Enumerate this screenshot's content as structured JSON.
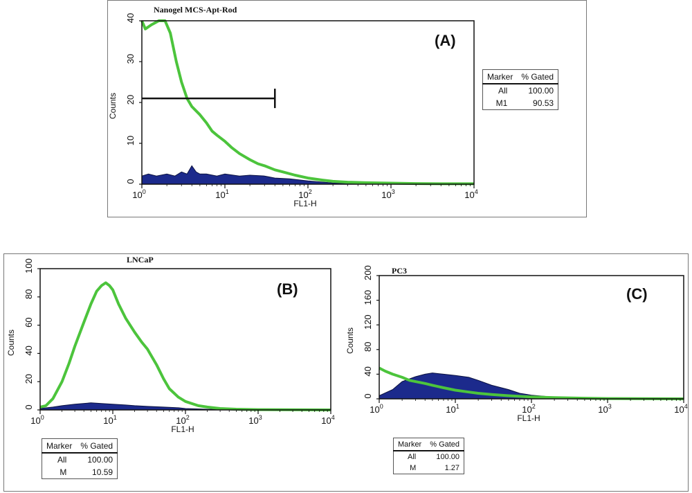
{
  "chart_data": [
    {
      "id": "A",
      "type": "area",
      "panel_label": "(A)",
      "title": "Nanogel MCS-Apt-Rod",
      "xlabel": "FL1-H",
      "ylabel": "Counts",
      "xscale": "log",
      "xlim": [
        1,
        10000
      ],
      "ylim": [
        0,
        40
      ],
      "yticks": [
        0,
        10,
        20,
        30,
        40
      ],
      "xticks": [
        1,
        10,
        100,
        1000,
        10000
      ],
      "colors": {
        "sample": "#4cc43c",
        "control": "#1c2a8c"
      },
      "series": [
        {
          "role": "sample",
          "x": [
            1,
            1.1,
            1.3,
            1.6,
            1.9,
            2.2,
            2.6,
            3,
            3.5,
            4,
            5,
            6,
            7,
            8,
            10,
            12,
            15,
            20,
            25,
            30,
            40,
            50,
            70,
            100,
            150,
            200,
            300,
            500,
            1000,
            2000,
            5000,
            10000
          ],
          "values": [
            40,
            38,
            39,
            40,
            40,
            37,
            30,
            25,
            21,
            19,
            17,
            15,
            13,
            12,
            10.5,
            9,
            7.5,
            6,
            5,
            4.5,
            3.5,
            3,
            2.2,
            1.5,
            1,
            0.7,
            0.5,
            0.35,
            0.25,
            0.15,
            0.1,
            0.1
          ]
        },
        {
          "role": "control",
          "x": [
            1,
            1.2,
            1.5,
            2,
            2.5,
            3,
            3.5,
            4,
            4.5,
            5,
            6,
            8,
            10,
            15,
            20,
            30,
            40,
            60,
            100,
            200,
            500,
            1000,
            10000
          ],
          "values": [
            2,
            2.5,
            2,
            2.5,
            2,
            3,
            2.5,
            4.5,
            3,
            2.5,
            2.5,
            2,
            2.5,
            2,
            2.2,
            2,
            1.5,
            1.3,
            0.8,
            0.3,
            0.1,
            0.05,
            0
          ]
        }
      ],
      "gate": {
        "x_start": 1,
        "x_end": 40,
        "y": 21
      },
      "marker_table": {
        "headers": [
          "Marker",
          "% Gated"
        ],
        "rows": [
          [
            "All",
            "100.00"
          ],
          [
            "M1",
            "90.53"
          ]
        ]
      }
    },
    {
      "id": "B",
      "type": "area",
      "panel_label": "(B)",
      "title": "LNCaP",
      "xlabel": "FL1-H",
      "ylabel": "Counts",
      "xscale": "log",
      "xlim": [
        1,
        10000
      ],
      "ylim": [
        0,
        100
      ],
      "yticks": [
        0,
        20,
        40,
        60,
        80,
        100
      ],
      "xticks": [
        1,
        10,
        100,
        1000,
        10000
      ],
      "colors": {
        "sample": "#4cc43c",
        "control": "#1c2a8c"
      },
      "series": [
        {
          "role": "sample",
          "x": [
            1,
            1.2,
            1.5,
            2,
            2.5,
            3,
            4,
            5,
            6,
            7,
            8,
            9,
            10,
            12,
            15,
            20,
            25,
            30,
            40,
            50,
            60,
            80,
            100,
            150,
            200,
            300,
            500,
            1000,
            10000
          ],
          "values": [
            2,
            3,
            8,
            20,
            33,
            45,
            62,
            75,
            84,
            88,
            90,
            88,
            85,
            75,
            65,
            55,
            48,
            43,
            32,
            22,
            15,
            9,
            6,
            3,
            2,
            1,
            0.5,
            0.2,
            0
          ]
        },
        {
          "role": "control",
          "x": [
            1,
            1.5,
            2,
            3,
            5,
            7,
            10,
            15,
            20,
            30,
            50,
            80,
            100,
            200,
            500,
            10000
          ],
          "values": [
            1,
            2,
            3,
            4,
            5,
            4.5,
            4,
            3.5,
            3,
            2.5,
            2,
            1.5,
            1,
            0.5,
            0.2,
            0
          ]
        }
      ],
      "marker_table": {
        "headers": [
          "Marker",
          "% Gated"
        ],
        "rows": [
          [
            "All",
            "100.00"
          ],
          [
            "M",
            "10.59"
          ]
        ]
      }
    },
    {
      "id": "C",
      "type": "area",
      "panel_label": "(C)",
      "title": "PC3",
      "xlabel": "FL1-H",
      "ylabel": "Counts",
      "xscale": "log",
      "xlim": [
        1,
        10000
      ],
      "ylim": [
        0,
        200
      ],
      "yticks": [
        0,
        40,
        80,
        120,
        160,
        200
      ],
      "xticks": [
        1,
        10,
        100,
        1000,
        10000
      ],
      "colors": {
        "sample": "#4cc43c",
        "control": "#1c2a8c"
      },
      "series": [
        {
          "role": "sample",
          "x": [
            1,
            1.2,
            1.5,
            2,
            2.5,
            3,
            4,
            5,
            7,
            10,
            15,
            20,
            30,
            50,
            100,
            200,
            500,
            1000,
            10000
          ],
          "values": [
            50,
            45,
            40,
            35,
            30,
            28,
            25,
            22,
            18,
            14,
            11,
            9,
            7,
            5,
            3,
            2,
            1,
            0.5,
            0
          ]
        },
        {
          "role": "control",
          "x": [
            1,
            1.5,
            2,
            3,
            4,
            5,
            7,
            10,
            15,
            20,
            30,
            50,
            70,
            100,
            150,
            200,
            500,
            1000,
            10000
          ],
          "values": [
            5,
            15,
            28,
            36,
            40,
            42,
            40,
            38,
            35,
            30,
            22,
            15,
            9,
            6,
            4,
            2,
            1,
            0.3,
            0
          ]
        }
      ],
      "marker_table": {
        "headers": [
          "Marker",
          "% Gated"
        ],
        "rows": [
          [
            "All",
            "100.00"
          ],
          [
            "M",
            "1.27"
          ]
        ]
      }
    }
  ]
}
